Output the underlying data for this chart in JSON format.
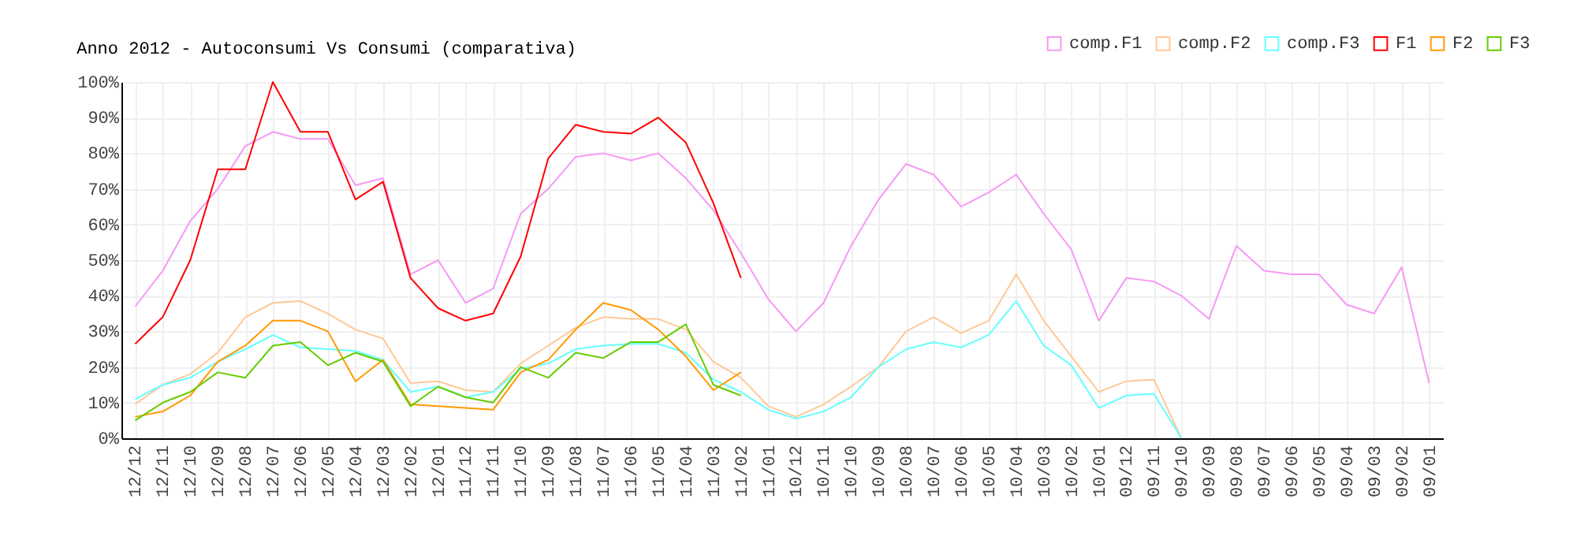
{
  "chart_data": {
    "type": "line",
    "title": "Anno 2012 - Autoconsumi Vs Consumi (comparativa)",
    "categories": [
      "12/12",
      "12/11",
      "12/10",
      "12/09",
      "12/08",
      "12/07",
      "12/06",
      "12/05",
      "12/04",
      "12/03",
      "12/02",
      "12/01",
      "11/12",
      "11/11",
      "11/10",
      "11/09",
      "11/08",
      "11/07",
      "11/06",
      "11/05",
      "11/04",
      "11/03",
      "11/02",
      "11/01",
      "10/12",
      "10/11",
      "10/10",
      "10/09",
      "10/08",
      "10/07",
      "10/06",
      "10/05",
      "10/04",
      "10/03",
      "10/02",
      "10/01",
      "09/12",
      "09/11",
      "09/10",
      "09/09",
      "09/08",
      "09/07",
      "09/06",
      "09/05",
      "09/04",
      "09/03",
      "09/02",
      "09/01"
    ],
    "series": [
      {
        "name": "comp.F1",
        "color": "#f59af5",
        "values": [
          37,
          47,
          61,
          70,
          82,
          86,
          84,
          84,
          71,
          73,
          46,
          50,
          38,
          42,
          63,
          70,
          79,
          80,
          78,
          80,
          73,
          64,
          52,
          39,
          30,
          38,
          54,
          67,
          77,
          74,
          65,
          69,
          74,
          63,
          53,
          33,
          45,
          44,
          40,
          33.5,
          54,
          47,
          46,
          46,
          37.5,
          35,
          48,
          15.5
        ]
      },
      {
        "name": "comp.F2",
        "color": "#ffc896",
        "values": [
          9.6,
          15,
          18,
          24,
          34,
          38,
          38.5,
          35,
          30.5,
          28,
          15.5,
          16,
          13.5,
          13,
          21,
          26,
          31,
          34,
          33.5,
          33.5,
          30.5,
          21.5,
          17,
          9,
          6,
          9.5,
          14.5,
          20,
          30,
          34,
          29.5,
          33,
          46,
          33,
          23,
          13,
          16,
          16.5,
          0,
          null,
          null,
          null,
          null,
          null,
          null,
          null,
          null,
          null
        ]
      },
      {
        "name": "comp.F3",
        "color": "#66ffff",
        "values": [
          11,
          15,
          17,
          21.5,
          25,
          29,
          25.5,
          25,
          24.5,
          22,
          13,
          14.5,
          11.5,
          13,
          19.5,
          21,
          25,
          26,
          26.5,
          26.5,
          24,
          16.5,
          13,
          8,
          5.5,
          7.5,
          11.5,
          20,
          25,
          27,
          25.5,
          29,
          38.5,
          26,
          20.5,
          8.5,
          12,
          12.5,
          0,
          null,
          null,
          null,
          null,
          null,
          null,
          null,
          null,
          null
        ]
      },
      {
        "name": "F1",
        "color": "#ff0000",
        "values": [
          26.5,
          34,
          50,
          75.5,
          75.5,
          100,
          86,
          86,
          67,
          72,
          45,
          36.5,
          33,
          35,
          51,
          78.5,
          88,
          86,
          85.5,
          90,
          83,
          66,
          45,
          null,
          null,
          null,
          null,
          null,
          null,
          null,
          null,
          null,
          null,
          null,
          null,
          null,
          null,
          null,
          null,
          null,
          null,
          null,
          null,
          null,
          null,
          null,
          null,
          null
        ]
      },
      {
        "name": "F2",
        "color": "#ff9900",
        "values": [
          6,
          7.5,
          12,
          21.5,
          26,
          33,
          33,
          30,
          16,
          22,
          9.5,
          9,
          8.5,
          8,
          18.5,
          22,
          30.5,
          38,
          36,
          30.5,
          23,
          13.5,
          18.5,
          null,
          null,
          null,
          null,
          null,
          null,
          null,
          null,
          null,
          null,
          null,
          null,
          null,
          null,
          null,
          null,
          null,
          null,
          null,
          null,
          null,
          null,
          null,
          null,
          null
        ]
      },
      {
        "name": "F3",
        "color": "#66cc00",
        "values": [
          5,
          10,
          13,
          18.5,
          17,
          26,
          27,
          20.5,
          24,
          21.5,
          9,
          14.5,
          11.5,
          10,
          20,
          17,
          24,
          22.5,
          27,
          27,
          32,
          15,
          12,
          null,
          null,
          null,
          null,
          null,
          null,
          null,
          null,
          null,
          null,
          null,
          null,
          null,
          null,
          null,
          null,
          null,
          null,
          null,
          null,
          null,
          null,
          null,
          null,
          null
        ]
      }
    ],
    "ylim": [
      0,
      100
    ],
    "yticks": [
      {
        "value": 0,
        "label": "0%"
      },
      {
        "value": 10,
        "label": "10%"
      },
      {
        "value": 20,
        "label": "20%"
      },
      {
        "value": 30,
        "label": "30%"
      },
      {
        "value": 40,
        "label": "40%"
      },
      {
        "value": 50,
        "label": "50%"
      },
      {
        "value": 60,
        "label": "60%"
      },
      {
        "value": 70,
        "label": "70%"
      },
      {
        "value": 80,
        "label": "80%"
      },
      {
        "value": 90,
        "label": "90%"
      },
      {
        "value": 100,
        "label": "100%"
      }
    ],
    "grid": true,
    "legend": "top right",
    "marker": "none",
    "line_style": "solid"
  }
}
